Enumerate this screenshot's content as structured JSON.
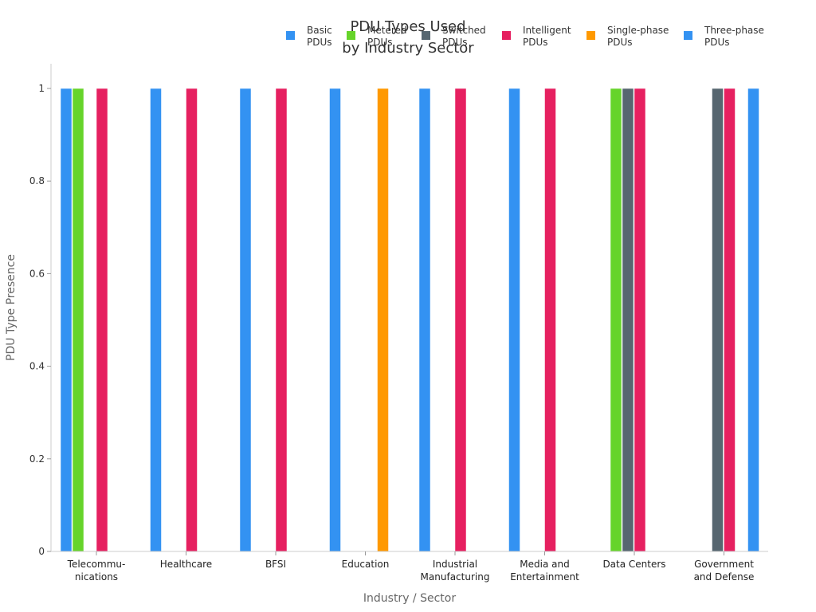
{
  "chart_data": {
    "type": "bar",
    "title": [
      "PDU Types Used",
      "by Industry Sector"
    ],
    "xlabel": "Industry / Sector",
    "ylabel": "PDU Type Presence",
    "ylim": [
      0,
      1
    ],
    "yticks": [
      0,
      0.2,
      0.4,
      0.6,
      0.8,
      1
    ],
    "grid": false,
    "legend_position": "top-right",
    "categories": [
      [
        "Telecommu-",
        "nications"
      ],
      [
        "Healthcare"
      ],
      [
        "BFSI"
      ],
      [
        "Education"
      ],
      [
        "Industrial",
        "Manufacturing"
      ],
      [
        "Media and",
        "Entertainment"
      ],
      [
        "Data Centers"
      ],
      [
        "Government",
        "and Defense"
      ]
    ],
    "series": [
      {
        "name": [
          "Basic",
          "PDUs"
        ],
        "color": "#3392F2",
        "values": [
          1,
          1,
          1,
          1,
          1,
          1,
          0,
          0
        ]
      },
      {
        "name": [
          "Metered",
          "PDUs"
        ],
        "color": "#66D42A",
        "values": [
          1,
          0,
          0,
          0,
          0,
          0,
          1,
          0
        ]
      },
      {
        "name": [
          "Switched",
          "PDUs"
        ],
        "color": "#566670",
        "values": [
          0,
          0,
          0,
          0,
          0,
          0,
          1,
          1
        ]
      },
      {
        "name": [
          "Intelligent",
          "PDUs"
        ],
        "color": "#E62060",
        "values": [
          1,
          1,
          1,
          0,
          1,
          1,
          1,
          1
        ]
      },
      {
        "name": [
          "Single-phase",
          "PDUs"
        ],
        "color": "#FF9900",
        "values": [
          0,
          0,
          0,
          1,
          0,
          0,
          0,
          0
        ]
      },
      {
        "name": [
          "Three-phase",
          "PDUs"
        ],
        "color": "#3392F2",
        "values": [
          0,
          0,
          0,
          0,
          0,
          0,
          0,
          1
        ]
      }
    ]
  }
}
